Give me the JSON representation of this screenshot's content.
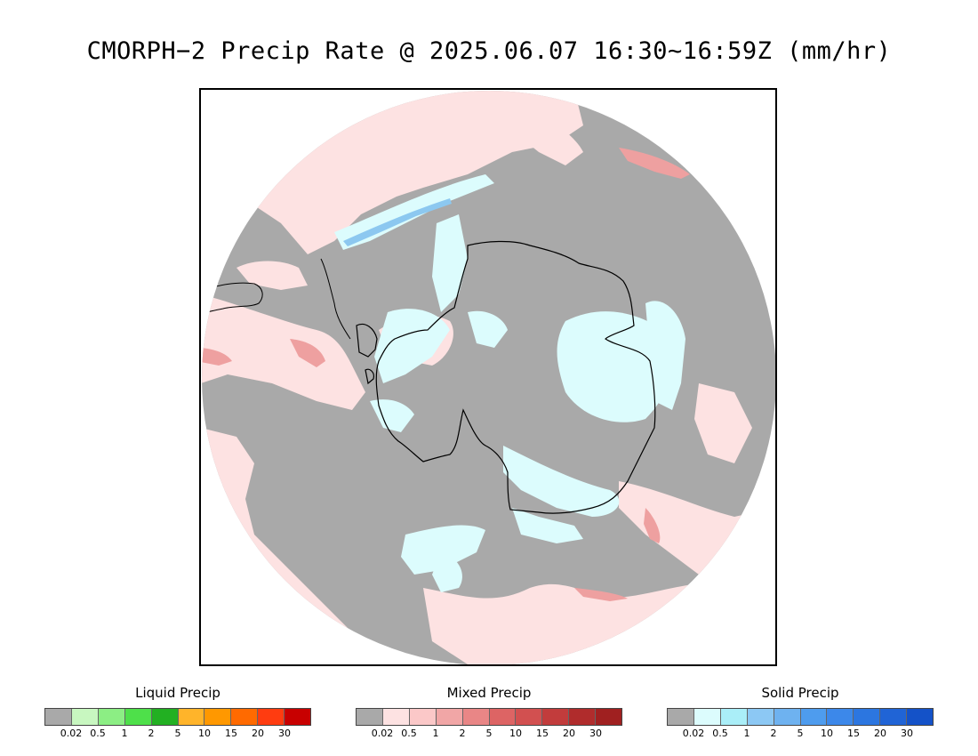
{
  "title": "CMORPH−2 Precip Rate @ 2025.06.07 16:30~16:59Z (mm/hr)",
  "colors": {
    "no_precip": "#a9a9a9",
    "mixed_light": "#fde2e2",
    "solid_light": "#dcfcfd",
    "solid_blue": "#8cc8f0",
    "mixed_mid": "#eea0a0",
    "coast": "#000000"
  },
  "legends": [
    {
      "title": "Liquid Precip",
      "colors": [
        "#a9a9a9",
        "#c8f7c0",
        "#8cee84",
        "#4ee04a",
        "#22b022",
        "#ffb42a",
        "#ff9800",
        "#ff6a00",
        "#ff3c10",
        "#c80000"
      ],
      "ticks": [
        "0.02",
        "0.5",
        "1",
        "2",
        "5",
        "10",
        "15",
        "20",
        "30"
      ]
    },
    {
      "title": "Mixed Precip",
      "colors": [
        "#a9a9a9",
        "#fde2e2",
        "#fbc8c8",
        "#f1a6a6",
        "#e98686",
        "#dd6464",
        "#d25050",
        "#c23c3c",
        "#b02c2c",
        "#a02020"
      ],
      "ticks": [
        "0.02",
        "0.5",
        "1",
        "2",
        "5",
        "10",
        "15",
        "20",
        "30"
      ]
    },
    {
      "title": "Solid Precip",
      "colors": [
        "#a9a9a9",
        "#dcfcfd",
        "#aaeef8",
        "#8cc8f4",
        "#6eb2f0",
        "#4e9cee",
        "#3c88ea",
        "#2c76e0",
        "#2064d6",
        "#1452c8"
      ],
      "ticks": [
        "0.02",
        "0.5",
        "1",
        "2",
        "5",
        "10",
        "15",
        "20",
        "30"
      ]
    }
  ]
}
